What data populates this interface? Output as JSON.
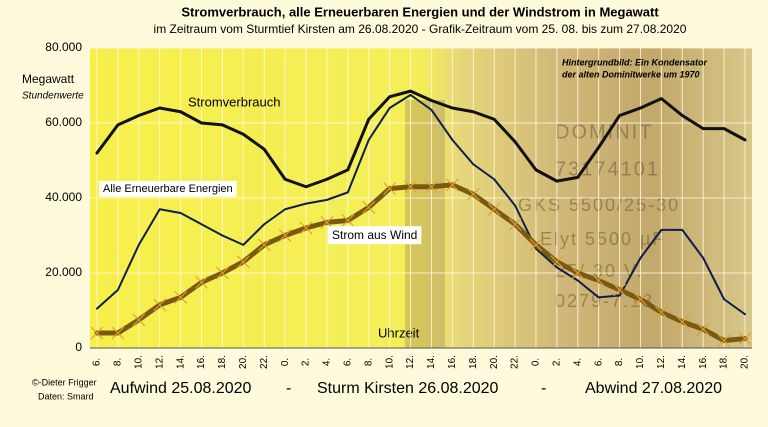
{
  "chart_data": {
    "type": "line",
    "title": "Stromverbrauch, alle Erneuerbaren Energien und der Windstrom in Megawatt",
    "subtitle": "im Zeitraum vom Sturmtief Kirsten am 26.08.2020  -  Grafik-Zeitraum  vom 25. 08. bis zum 27.08.2020",
    "y_label": "Megawatt",
    "y_sublabel": "Stundenwerte",
    "x_label": "Uhrzeit",
    "categories": [
      "6.",
      "8.",
      "10.",
      "12.",
      "14.",
      "16.",
      "18.",
      "20.",
      "22.",
      "0.",
      "2.",
      "4.",
      "6.",
      "8.",
      "10.",
      "12.",
      "14.",
      "16.",
      "18.",
      "20.",
      "22.",
      "0.",
      "2.",
      "4.",
      "6.",
      "8.",
      "10.",
      "12.",
      "14.",
      "16.",
      "18.",
      "20."
    ],
    "ylim": [
      0,
      80000
    ],
    "yticks": [
      0,
      {
        "value": 20000,
        "label": "20.000"
      },
      {
        "value": 40000,
        "label": "40.000"
      },
      {
        "value": 60000,
        "label": "60.000"
      },
      {
        "value": 80000,
        "label": "80.000"
      }
    ],
    "grid": true,
    "series": [
      {
        "name": "Stromverbrauch",
        "color": "#111111",
        "values": [
          52000,
          59500,
          62000,
          64000,
          63000,
          60000,
          59500,
          57000,
          53000,
          45000,
          43000,
          45000,
          47500,
          61000,
          67000,
          68500,
          66000,
          64000,
          63000,
          61000,
          55000,
          47500,
          44500,
          45500,
          53500,
          62000,
          64000,
          66500,
          62000,
          58500,
          58500,
          55500
        ]
      },
      {
        "name": "Alle Erneuerbare Energien",
        "color": "#0d1f4a",
        "values": [
          10500,
          15500,
          27500,
          37000,
          36000,
          33000,
          30000,
          27500,
          33000,
          37000,
          38500,
          39500,
          41500,
          55500,
          64000,
          67500,
          63500,
          55500,
          49000,
          45000,
          38000,
          26500,
          21500,
          18000,
          13500,
          14000,
          24000,
          31500,
          31500,
          24000,
          13000,
          9000
        ]
      },
      {
        "name": "Strom aus Wind",
        "color": "#7a5a12",
        "values": [
          4000,
          4000,
          7500,
          11500,
          13500,
          17500,
          20000,
          23000,
          27500,
          30000,
          32000,
          33500,
          34000,
          37500,
          42500,
          43000,
          43000,
          43500,
          41000,
          37000,
          33000,
          27500,
          23000,
          20000,
          18000,
          15500,
          13000,
          9500,
          7000,
          5000,
          2000,
          2500
        ]
      }
    ],
    "annotations": [
      "Hintergrundbild: Ein Kondensator",
      "der alten Dominitwerke um 1970",
      "©-Dieter Frigger",
      "Daten: Smard"
    ],
    "background_texts": [
      "DOMINIT",
      "73174101",
      "GKS 5500/25-30",
      "Elyt 5500 µF",
      "25/ 30 V.",
      "0279-7.13"
    ],
    "footer": [
      "Aufwind 25.08.2020",
      "-",
      "Sturm Kirsten 26.08.2020",
      "-",
      "Abwind 27.08.2020"
    ]
  }
}
